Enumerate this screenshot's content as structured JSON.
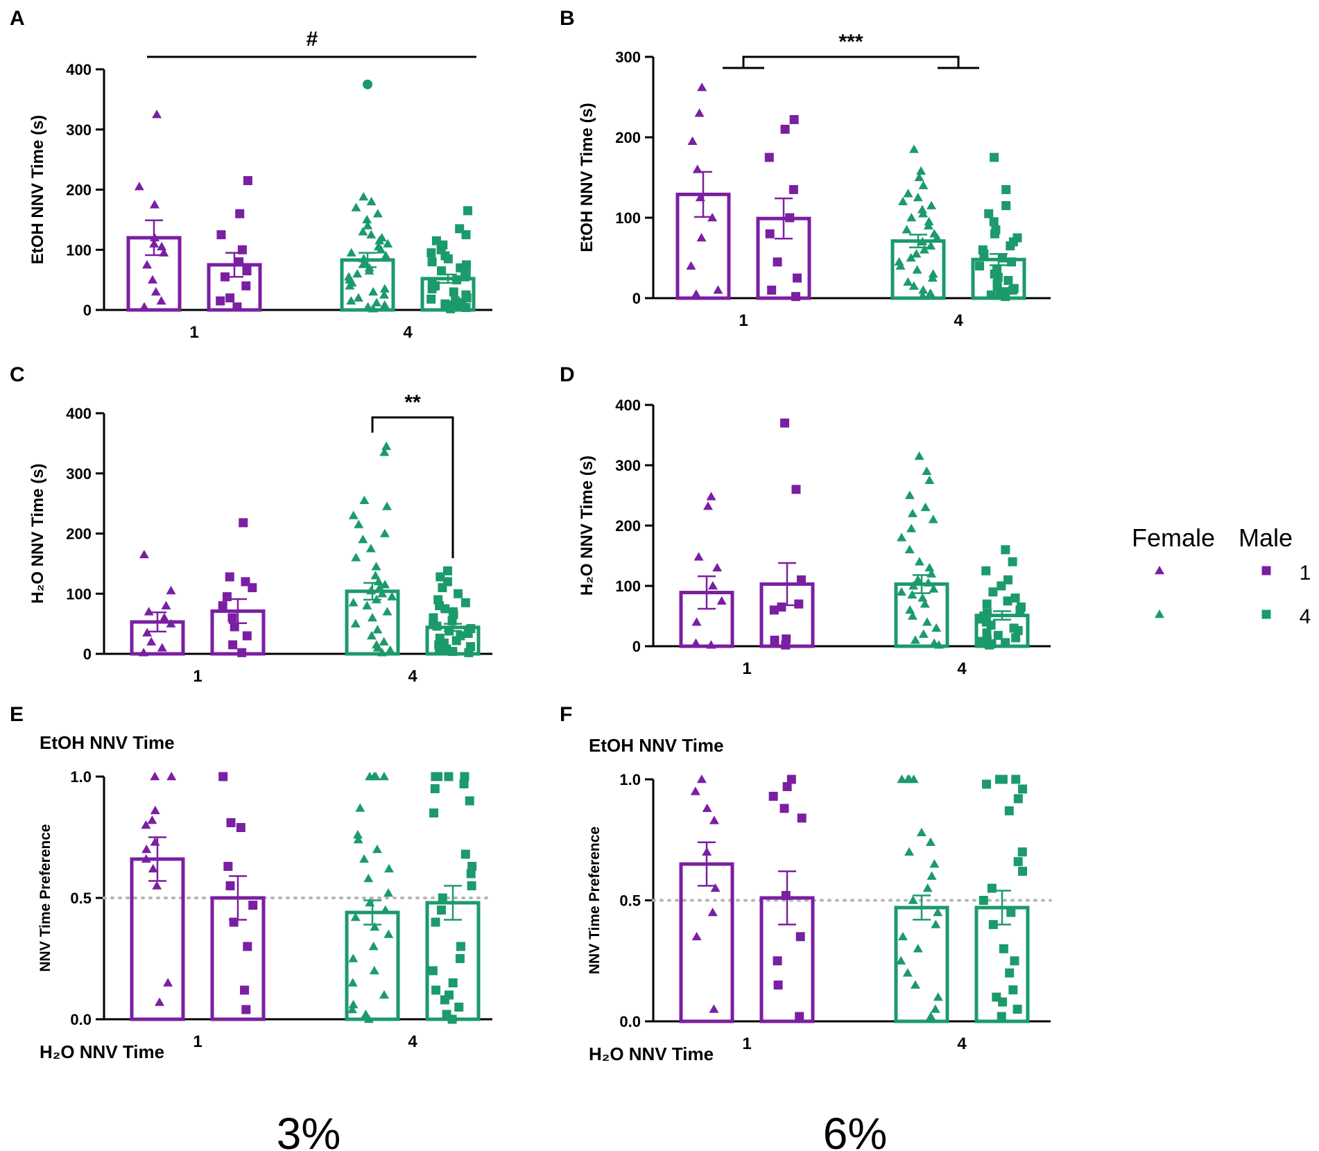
{
  "colors": {
    "dose_1": "#7a1fa2",
    "dose_4": "#1b9a6b",
    "axis": "#000000",
    "reference": "#b5b5b5"
  },
  "legend": {
    "headers": [
      "Female",
      "Male"
    ],
    "rows": [
      {
        "label": "1",
        "color": "#7a1fa2"
      },
      {
        "label": "4",
        "color": "#1b9a6b"
      }
    ]
  },
  "concentration_labels": [
    "3%",
    "6%"
  ],
  "chart_data": [
    {
      "panel": "A",
      "type": "bar",
      "concentration": "3%",
      "ylabel": "EtOH NNV Time (s)",
      "ylim": [
        0,
        400
      ],
      "yticks": [
        0,
        100,
        200,
        300,
        400
      ],
      "categories": [
        "1",
        "4"
      ],
      "groups": [
        {
          "category": "1",
          "sex": "Female",
          "marker": "triangle",
          "color": "#7a1fa2",
          "mean": 120,
          "sem": 29,
          "points": [
            5,
            15,
            30,
            50,
            75,
            95,
            105,
            110,
            120,
            175,
            205,
            325
          ]
        },
        {
          "category": "1",
          "sex": "Male",
          "marker": "square",
          "color": "#7a1fa2",
          "mean": 75,
          "sem": 20,
          "points": [
            5,
            15,
            20,
            40,
            55,
            65,
            80,
            100,
            125,
            160,
            215
          ]
        },
        {
          "category": "4",
          "sex": "Female",
          "marker": "triangle",
          "color": "#1b9a6b",
          "mean": 83,
          "sem": 12,
          "points": [
            2,
            5,
            8,
            12,
            15,
            20,
            25,
            30,
            35,
            40,
            45,
            50,
            55,
            60,
            65,
            70,
            78,
            85,
            90,
            95,
            100,
            105,
            110,
            115,
            120,
            125,
            130,
            140,
            150,
            160,
            170,
            180,
            188
          ]
        },
        {
          "category": "4",
          "sex": "Male",
          "marker": "square",
          "color": "#1b9a6b",
          "mean": 52,
          "sem": 7,
          "points": [
            2,
            4,
            6,
            8,
            10,
            12,
            15,
            18,
            20,
            25,
            30,
            35,
            40,
            45,
            50,
            55,
            60,
            65,
            70,
            75,
            80,
            85,
            90,
            95,
            100,
            108,
            115,
            125,
            135,
            165
          ]
        }
      ],
      "outliers": [
        {
          "category": "4",
          "sex": "Female",
          "value": 375,
          "marker": "circle"
        }
      ],
      "annotation": {
        "type": "line",
        "text": "#",
        "from": "1",
        "to": "4"
      }
    },
    {
      "panel": "B",
      "type": "bar",
      "concentration": "6%",
      "ylabel": "EtOH NNV Time (s)",
      "ylim": [
        0,
        300
      ],
      "yticks": [
        0,
        100,
        200,
        300
      ],
      "categories": [
        "1",
        "4"
      ],
      "groups": [
        {
          "category": "1",
          "sex": "Female",
          "marker": "triangle",
          "color": "#7a1fa2",
          "mean": 129,
          "sem": 28,
          "points": [
            5,
            10,
            40,
            75,
            100,
            125,
            160,
            195,
            230,
            262
          ]
        },
        {
          "category": "1",
          "sex": "Male",
          "marker": "square",
          "color": "#7a1fa2",
          "mean": 99,
          "sem": 25,
          "points": [
            2,
            10,
            25,
            45,
            80,
            100,
            135,
            175,
            210,
            222
          ]
        },
        {
          "category": "4",
          "sex": "Female",
          "marker": "triangle",
          "color": "#1b9a6b",
          "mean": 71,
          "sem": 8,
          "points": [
            3,
            6,
            10,
            15,
            20,
            25,
            30,
            35,
            40,
            45,
            50,
            55,
            60,
            65,
            70,
            75,
            80,
            85,
            90,
            95,
            100,
            105,
            110,
            115,
            120,
            125,
            130,
            140,
            150,
            158,
            185
          ]
        },
        {
          "category": "4",
          "sex": "Male",
          "marker": "square",
          "color": "#1b9a6b",
          "mean": 48,
          "sem": 7,
          "points": [
            2,
            4,
            6,
            8,
            10,
            12,
            15,
            18,
            22,
            26,
            30,
            35,
            40,
            45,
            50,
            55,
            60,
            65,
            70,
            75,
            80,
            85,
            95,
            105,
            115,
            135,
            175
          ]
        }
      ],
      "annotation": {
        "type": "grouped-bracket",
        "text": "***",
        "from": "1",
        "to": "4"
      }
    },
    {
      "panel": "C",
      "type": "bar",
      "concentration": "3%",
      "ylabel": "H2O NNV Time (s)",
      "ylim": [
        0,
        400
      ],
      "yticks": [
        0,
        100,
        200,
        300,
        400
      ],
      "categories": [
        "1",
        "4"
      ],
      "groups": [
        {
          "category": "1",
          "sex": "Female",
          "marker": "triangle",
          "color": "#7a1fa2",
          "mean": 53,
          "sem": 16,
          "points": [
            2,
            10,
            20,
            35,
            50,
            60,
            70,
            80,
            105,
            165
          ]
        },
        {
          "category": "1",
          "sex": "Male",
          "marker": "square",
          "color": "#7a1fa2",
          "mean": 71,
          "sem": 20,
          "points": [
            2,
            15,
            30,
            45,
            60,
            80,
            95,
            110,
            120,
            128,
            218
          ]
        },
        {
          "category": "4",
          "sex": "Female",
          "marker": "triangle",
          "color": "#1b9a6b",
          "mean": 104,
          "sem": 14,
          "points": [
            2,
            6,
            10,
            15,
            20,
            30,
            40,
            50,
            60,
            70,
            80,
            85,
            90,
            95,
            100,
            105,
            110,
            115,
            120,
            130,
            145,
            160,
            175,
            190,
            200,
            215,
            230,
            245,
            255,
            335,
            345
          ]
        },
        {
          "category": "4",
          "sex": "Male",
          "marker": "square",
          "color": "#1b9a6b",
          "mean": 44,
          "sem": 6,
          "points": [
            2,
            4,
            6,
            8,
            10,
            12,
            15,
            18,
            22,
            26,
            30,
            34,
            38,
            42,
            46,
            50,
            55,
            60,
            65,
            70,
            75,
            80,
            85,
            90,
            100,
            110,
            120,
            128,
            138
          ]
        }
      ],
      "annotation": {
        "type": "bracket",
        "text": "**",
        "between": [
          "4 Female",
          "4 Male"
        ]
      }
    },
    {
      "panel": "D",
      "type": "bar",
      "concentration": "6%",
      "ylabel": "H2O NNV Time (s)",
      "ylim": [
        0,
        400
      ],
      "yticks": [
        0,
        100,
        200,
        300,
        400
      ],
      "categories": [
        "1",
        "4"
      ],
      "groups": [
        {
          "category": "1",
          "sex": "Female",
          "marker": "triangle",
          "color": "#7a1fa2",
          "mean": 89,
          "sem": 27,
          "points": [
            2,
            5,
            40,
            75,
            100,
            130,
            148,
            232,
            248
          ]
        },
        {
          "category": "1",
          "sex": "Male",
          "marker": "square",
          "color": "#7a1fa2",
          "mean": 103,
          "sem": 35,
          "points": [
            2,
            10,
            12,
            60,
            65,
            70,
            110,
            260,
            370
          ]
        },
        {
          "category": "4",
          "sex": "Female",
          "marker": "triangle",
          "color": "#1b9a6b",
          "mean": 103,
          "sem": 15,
          "points": [
            2,
            5,
            10,
            20,
            30,
            40,
            50,
            60,
            70,
            80,
            85,
            90,
            95,
            100,
            105,
            110,
            120,
            130,
            140,
            160,
            180,
            195,
            210,
            220,
            230,
            250,
            275,
            290,
            315
          ]
        },
        {
          "category": "4",
          "sex": "Male",
          "marker": "square",
          "color": "#1b9a6b",
          "mean": 51,
          "sem": 7,
          "points": [
            2,
            4,
            6,
            8,
            10,
            14,
            18,
            22,
            26,
            30,
            35,
            40,
            45,
            50,
            55,
            60,
            65,
            70,
            75,
            80,
            90,
            100,
            110,
            125,
            140,
            160
          ]
        }
      ]
    },
    {
      "panel": "E",
      "type": "bar",
      "concentration": "3%",
      "ylabel": "NNV Time Preference",
      "ylim": [
        0,
        1
      ],
      "yticks": [
        "0.0",
        "0.5",
        "1.0"
      ],
      "top_label": "EtOH NNV Time",
      "bottom_label": "H2O NNV Time",
      "reference_line": 0.5,
      "categories": [
        "1",
        "4"
      ],
      "groups": [
        {
          "category": "1",
          "sex": "Female",
          "marker": "triangle",
          "color": "#7a1fa2",
          "mean": 0.66,
          "sem": 0.09,
          "points": [
            0.07,
            0.15,
            0.55,
            0.62,
            0.66,
            0.7,
            0.73,
            0.8,
            0.82,
            0.86,
            1.0,
            1.0
          ]
        },
        {
          "category": "1",
          "sex": "Male",
          "marker": "square",
          "color": "#7a1fa2",
          "mean": 0.5,
          "sem": 0.09,
          "points": [
            0.04,
            0.12,
            0.3,
            0.4,
            0.47,
            0.55,
            0.63,
            0.79,
            0.81,
            1.0
          ]
        },
        {
          "category": "4",
          "sex": "Female",
          "marker": "triangle",
          "color": "#1b9a6b",
          "mean": 0.44,
          "sem": 0.05,
          "points": [
            0.0,
            0.02,
            0.04,
            0.06,
            0.1,
            0.15,
            0.2,
            0.25,
            0.3,
            0.35,
            0.38,
            0.42,
            0.45,
            0.48,
            0.52,
            0.58,
            0.62,
            0.66,
            0.7,
            0.74,
            0.76,
            0.87,
            1.0,
            1.0,
            1.0,
            1.0
          ]
        },
        {
          "category": "4",
          "sex": "Male",
          "marker": "square",
          "color": "#1b9a6b",
          "mean": 0.48,
          "sem": 0.07,
          "points": [
            0.0,
            0.02,
            0.05,
            0.08,
            0.1,
            0.12,
            0.15,
            0.2,
            0.25,
            0.3,
            0.4,
            0.45,
            0.5,
            0.55,
            0.6,
            0.63,
            0.68,
            0.85,
            0.9,
            0.95,
            0.97,
            1.0,
            1.0,
            1.0,
            1.0
          ]
        }
      ]
    },
    {
      "panel": "F",
      "type": "bar",
      "concentration": "6%",
      "ylabel": "NNV Time Preference",
      "ylim": [
        0,
        1
      ],
      "yticks": [
        "0.0",
        "0.5",
        "1.0"
      ],
      "top_label": "EtOH NNV Time",
      "bottom_label": "H2O NNV Time",
      "reference_line": 0.5,
      "categories": [
        "1",
        "4"
      ],
      "groups": [
        {
          "category": "1",
          "sex": "Female",
          "marker": "triangle",
          "color": "#7a1fa2",
          "mean": 0.65,
          "sem": 0.09,
          "points": [
            0.05,
            0.35,
            0.45,
            0.55,
            0.7,
            0.83,
            0.88,
            0.95,
            1.0
          ]
        },
        {
          "category": "1",
          "sex": "Male",
          "marker": "square",
          "color": "#7a1fa2",
          "mean": 0.51,
          "sem": 0.11,
          "points": [
            0.02,
            0.15,
            0.25,
            0.35,
            0.52,
            0.84,
            0.88,
            0.93,
            0.97,
            1.0
          ]
        },
        {
          "category": "4",
          "sex": "Female",
          "marker": "triangle",
          "color": "#1b9a6b",
          "mean": 0.47,
          "sem": 0.05,
          "points": [
            0.02,
            0.05,
            0.1,
            0.15,
            0.2,
            0.25,
            0.3,
            0.35,
            0.4,
            0.45,
            0.5,
            0.55,
            0.6,
            0.65,
            0.7,
            0.74,
            0.78,
            1.0,
            1.0,
            1.0,
            1.0
          ]
        },
        {
          "category": "4",
          "sex": "Male",
          "marker": "square",
          "color": "#1b9a6b",
          "mean": 0.47,
          "sem": 0.07,
          "points": [
            0.02,
            0.05,
            0.08,
            0.1,
            0.13,
            0.2,
            0.25,
            0.3,
            0.4,
            0.45,
            0.5,
            0.55,
            0.62,
            0.66,
            0.7,
            0.87,
            0.92,
            0.96,
            0.98,
            1.0,
            1.0,
            1.0
          ]
        }
      ]
    }
  ]
}
